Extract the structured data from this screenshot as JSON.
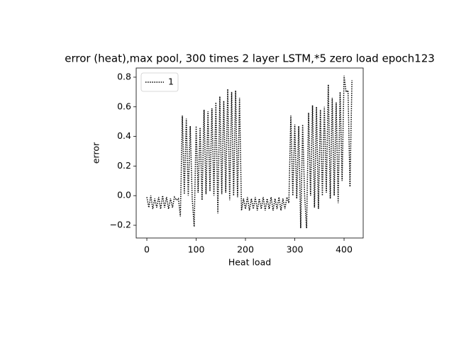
{
  "chart_data": {
    "type": "line",
    "title": "error (heat),max pool, 300 times 2 layer LSTM,*5 zero load epoch123",
    "x_label": "Heat load",
    "y_label": "error",
    "x": [
      0,
      4,
      8,
      12,
      16,
      20,
      24,
      28,
      32,
      36,
      40,
      44,
      48,
      52,
      56,
      60,
      64,
      68,
      72,
      76,
      80,
      84,
      88,
      92,
      96,
      100,
      104,
      108,
      112,
      116,
      120,
      124,
      128,
      132,
      136,
      140,
      144,
      148,
      152,
      156,
      160,
      164,
      168,
      172,
      176,
      180,
      184,
      188,
      192,
      196,
      200,
      204,
      208,
      212,
      216,
      220,
      224,
      228,
      232,
      236,
      240,
      244,
      248,
      252,
      256,
      260,
      264,
      268,
      272,
      276,
      280,
      284,
      288,
      292,
      296,
      300,
      304,
      308,
      312,
      316,
      320,
      324,
      328,
      332,
      336,
      340,
      344,
      348,
      352,
      356,
      360,
      364,
      368,
      372,
      376,
      380,
      384,
      388,
      392,
      396,
      400,
      404,
      408,
      412,
      416
    ],
    "series": [
      {
        "name": "1",
        "color": "#000000",
        "values": [
          -0.01,
          -0.08,
          0.0,
          -0.09,
          -0.02,
          -0.08,
          -0.01,
          -0.09,
          0.0,
          -0.08,
          -0.01,
          -0.09,
          -0.02,
          -0.08,
          -0.01,
          -0.03,
          -0.02,
          -0.14,
          0.54,
          0.01,
          0.52,
          0.0,
          0.47,
          -0.02,
          -0.21,
          0.47,
          0.02,
          0.46,
          -0.03,
          0.58,
          0.01,
          0.57,
          0.03,
          0.59,
          0.0,
          0.63,
          -0.12,
          0.67,
          0.01,
          0.64,
          0.02,
          0.72,
          -0.03,
          0.7,
          0.0,
          0.71,
          -0.01,
          0.66,
          -0.1,
          -0.02,
          -0.09,
          -0.01,
          -0.1,
          -0.02,
          -0.09,
          -0.01,
          -0.1,
          -0.02,
          -0.09,
          -0.01,
          -0.1,
          -0.02,
          -0.09,
          -0.01,
          -0.1,
          -0.02,
          -0.09,
          -0.01,
          -0.1,
          -0.02,
          -0.09,
          -0.01,
          -0.05,
          0.54,
          0.0,
          0.48,
          -0.02,
          0.47,
          -0.22,
          0.48,
          0.0,
          -0.22,
          0.56,
          0.0,
          0.61,
          -0.08,
          0.6,
          -0.09,
          0.58,
          0.0,
          0.6,
          0.02,
          0.75,
          -0.02,
          0.66,
          0.0,
          0.63,
          -0.05,
          0.7,
          0.1,
          0.81,
          0.7,
          0.71,
          0.06,
          0.78
        ]
      }
    ],
    "xlim": [
      -21.6,
      438.8
    ],
    "xticks": [
      0,
      100,
      200,
      300,
      400
    ],
    "ylim": [
      -0.286,
      0.862
    ],
    "yticks": [
      {
        "value": -0.2,
        "label": "−0.2"
      },
      {
        "value": 0,
        "label": "0.0"
      },
      0.2,
      0.4,
      0.6,
      0.8
    ],
    "legend": "upper left",
    "line_style": "dotted"
  }
}
